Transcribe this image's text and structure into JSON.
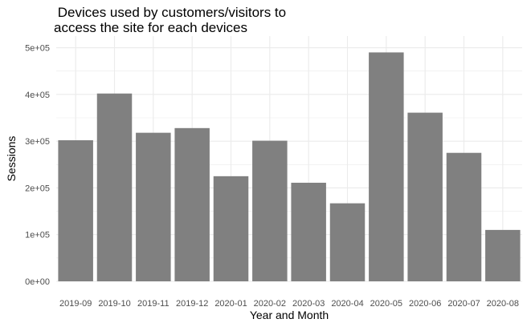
{
  "chart_data": {
    "type": "bar",
    "title": " Devices used by customers/visitors to\naccess the site for each devices",
    "xlabel": "Year and Month",
    "ylabel": "Sessions",
    "categories": [
      "2019-09",
      "2019-10",
      "2019-11",
      "2019-12",
      "2020-01",
      "2020-02",
      "2020-03",
      "2020-04",
      "2020-05",
      "2020-06",
      "2020-07",
      "2020-08"
    ],
    "values": [
      302000,
      402000,
      318000,
      328000,
      225000,
      301000,
      211000,
      167000,
      490000,
      361000,
      275000,
      110000
    ],
    "ylim": [
      0,
      525000
    ],
    "yticks": [
      0,
      100000,
      200000,
      300000,
      400000,
      500000
    ],
    "ytick_labels": [
      "0e+00",
      "1e+05",
      "2e+05",
      "3e+05",
      "4e+05",
      "5e+05"
    ],
    "bar_color": "#808080",
    "grid": true,
    "grid_color": "#ebebeb",
    "legend": "none"
  }
}
